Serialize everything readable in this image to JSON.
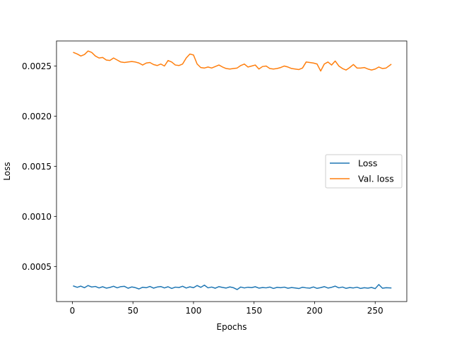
{
  "chart_data": {
    "type": "line",
    "title": "",
    "xlabel": "Epochs",
    "ylabel": "Loss",
    "xlim": [
      -13.1,
      276.1
    ],
    "ylim": [
      0.00015,
      0.00275
    ],
    "x_ticks": [
      0,
      50,
      100,
      150,
      200,
      250
    ],
    "y_ticks": [
      0.0005,
      0.001,
      0.0015,
      0.002,
      0.0025
    ],
    "x_tick_labels": [
      "0",
      "50",
      "100",
      "150",
      "200",
      "250"
    ],
    "y_tick_labels": [
      "0.0005",
      "0.0010",
      "0.0015",
      "0.0020",
      "0.0025"
    ],
    "grid": false,
    "legend_position": "center-right",
    "series": [
      {
        "name": "Loss",
        "color": "#1f77b4",
        "x": [
          1,
          4,
          7,
          10,
          13,
          16,
          19,
          22,
          25,
          28,
          31,
          34,
          37,
          40,
          43,
          46,
          49,
          52,
          55,
          58,
          61,
          64,
          67,
          70,
          73,
          76,
          79,
          82,
          85,
          88,
          91,
          94,
          97,
          100,
          103,
          106,
          109,
          112,
          115,
          118,
          121,
          124,
          127,
          130,
          133,
          136,
          139,
          142,
          145,
          148,
          151,
          154,
          157,
          160,
          163,
          166,
          169,
          172,
          175,
          178,
          181,
          184,
          187,
          190,
          193,
          196,
          199,
          202,
          205,
          208,
          211,
          214,
          217,
          220,
          223,
          226,
          229,
          232,
          235,
          238,
          241,
          244,
          247,
          250,
          253,
          256,
          259,
          263
        ],
        "y": [
          0.000305,
          0.000292,
          0.000304,
          0.000288,
          0.00031,
          0.000295,
          0.000301,
          0.000286,
          0.000298,
          0.000284,
          0.000291,
          0.000303,
          0.000287,
          0.000299,
          0.000302,
          0.000283,
          0.000296,
          0.000289,
          0.000276,
          0.000293,
          0.000288,
          0.000301,
          0.000284,
          0.000295,
          0.0003,
          0.000286,
          0.000298,
          0.000281,
          0.000294,
          0.00029,
          0.000303,
          0.000285,
          0.000297,
          0.000288,
          0.00031,
          0.000292,
          0.000314,
          0.000287,
          0.000295,
          0.000283,
          0.000299,
          0.000291,
          0.000285,
          0.000296,
          0.000288,
          0.00027,
          0.000295,
          0.000286,
          0.000293,
          0.000289,
          0.000298,
          0.000284,
          0.00029,
          0.000287,
          0.000295,
          0.000281,
          0.000292,
          0.000288,
          0.000294,
          0.000283,
          0.00029,
          0.000286,
          0.00028,
          0.000293,
          0.000287,
          0.000284,
          0.000296,
          0.000282,
          0.000289,
          0.000299,
          0.000285,
          0.000292,
          0.000304,
          0.000287,
          0.000295,
          0.000282,
          0.00029,
          0.000286,
          0.000293,
          0.000281,
          0.000288,
          0.000284,
          0.000291,
          0.000279,
          0.00032,
          0.000283,
          0.000288,
          0.000286
        ]
      },
      {
        "name": "Val. loss",
        "color": "#ff7f0e",
        "x": [
          1,
          4,
          7,
          10,
          13,
          16,
          19,
          22,
          25,
          28,
          31,
          34,
          37,
          40,
          43,
          46,
          49,
          52,
          55,
          58,
          61,
          64,
          67,
          70,
          73,
          76,
          79,
          82,
          85,
          88,
          91,
          94,
          97,
          100,
          103,
          106,
          109,
          112,
          115,
          118,
          121,
          124,
          127,
          130,
          133,
          136,
          139,
          142,
          145,
          148,
          151,
          154,
          157,
          160,
          163,
          166,
          169,
          172,
          175,
          178,
          181,
          184,
          187,
          190,
          193,
          196,
          199,
          202,
          205,
          208,
          211,
          214,
          217,
          220,
          223,
          226,
          229,
          232,
          235,
          238,
          241,
          244,
          247,
          250,
          253,
          256,
          259,
          263
        ],
        "y": [
          0.002635,
          0.00262,
          0.0026,
          0.002615,
          0.00265,
          0.002635,
          0.0026,
          0.00258,
          0.002585,
          0.00256,
          0.002555,
          0.00258,
          0.00256,
          0.00254,
          0.002535,
          0.00254,
          0.002545,
          0.00254,
          0.00253,
          0.00251,
          0.00253,
          0.002535,
          0.002515,
          0.002505,
          0.00252,
          0.0025,
          0.002555,
          0.00254,
          0.00251,
          0.002505,
          0.00252,
          0.00258,
          0.00262,
          0.00261,
          0.00252,
          0.002485,
          0.00248,
          0.00249,
          0.00248,
          0.002495,
          0.00251,
          0.00249,
          0.002475,
          0.00247,
          0.002475,
          0.00248,
          0.002505,
          0.00252,
          0.00249,
          0.0025,
          0.00251,
          0.00247,
          0.002495,
          0.0025,
          0.002475,
          0.00247,
          0.002475,
          0.002485,
          0.0025,
          0.00249,
          0.002475,
          0.00247,
          0.002465,
          0.00248,
          0.00254,
          0.002535,
          0.00253,
          0.00252,
          0.00245,
          0.00252,
          0.00254,
          0.00251,
          0.00255,
          0.0025,
          0.002475,
          0.00246,
          0.002485,
          0.002515,
          0.00248,
          0.00248,
          0.002485,
          0.00247,
          0.00246,
          0.00247,
          0.00249,
          0.002475,
          0.00248,
          0.002515
        ]
      }
    ]
  }
}
